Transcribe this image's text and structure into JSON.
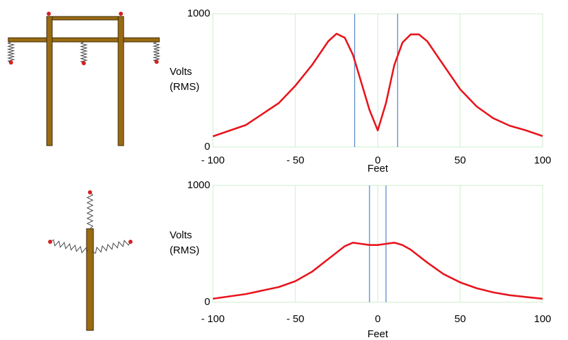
{
  "chart_data": [
    {
      "type": "line",
      "ylabel": [
        "Volts",
        "(RMS)"
      ],
      "xlabel": "Feet",
      "x": [
        -100,
        -80,
        -60,
        -50,
        -40,
        -30,
        -25,
        -20,
        -15,
        -10,
        -5,
        0,
        5,
        10,
        15,
        20,
        25,
        30,
        40,
        50,
        60,
        70,
        80,
        90,
        100
      ],
      "values": [
        80,
        165,
        330,
        460,
        613,
        794,
        850,
        820,
        690,
        485,
        278,
        124,
        330,
        613,
        784,
        845,
        845,
        794,
        613,
        433,
        304,
        216,
        160,
        124,
        82
      ],
      "color": "#e8141c",
      "vlines": [
        -14,
        12
      ],
      "vline_color": "#5b8ccc",
      "xlim": [
        -100,
        100
      ],
      "ylim": [
        0,
        1000
      ],
      "xticks": [
        {
          "value": -100,
          "label": "- 100"
        },
        {
          "value": -50,
          "label": "- 50"
        },
        0,
        50,
        100
      ],
      "yticks": [
        0,
        1000
      ],
      "grid": true
    },
    {
      "type": "line",
      "ylabel": [
        "Volts",
        "(RMS)"
      ],
      "xlabel": "Feet",
      "x": [
        -100,
        -80,
        -60,
        -50,
        -40,
        -30,
        -20,
        -15,
        -10,
        -5,
        0,
        5,
        10,
        15,
        20,
        30,
        40,
        50,
        60,
        70,
        80,
        90,
        100
      ],
      "values": [
        30,
        70,
        130,
        180,
        260,
        370,
        480,
        510,
        500,
        490,
        490,
        500,
        510,
        490,
        450,
        340,
        240,
        170,
        120,
        85,
        60,
        45,
        30
      ],
      "color": "#e8141c",
      "vlines": [
        -5,
        5
      ],
      "vline_color": "#5b8ccc",
      "xlim": [
        -100,
        100
      ],
      "ylim": [
        0,
        1000
      ],
      "xticks": [
        {
          "value": -100,
          "label": "- 100"
        },
        {
          "value": -50,
          "label": "- 50"
        },
        0,
        50,
        100
      ],
      "yticks": [
        0,
        1000
      ],
      "grid": true
    }
  ]
}
